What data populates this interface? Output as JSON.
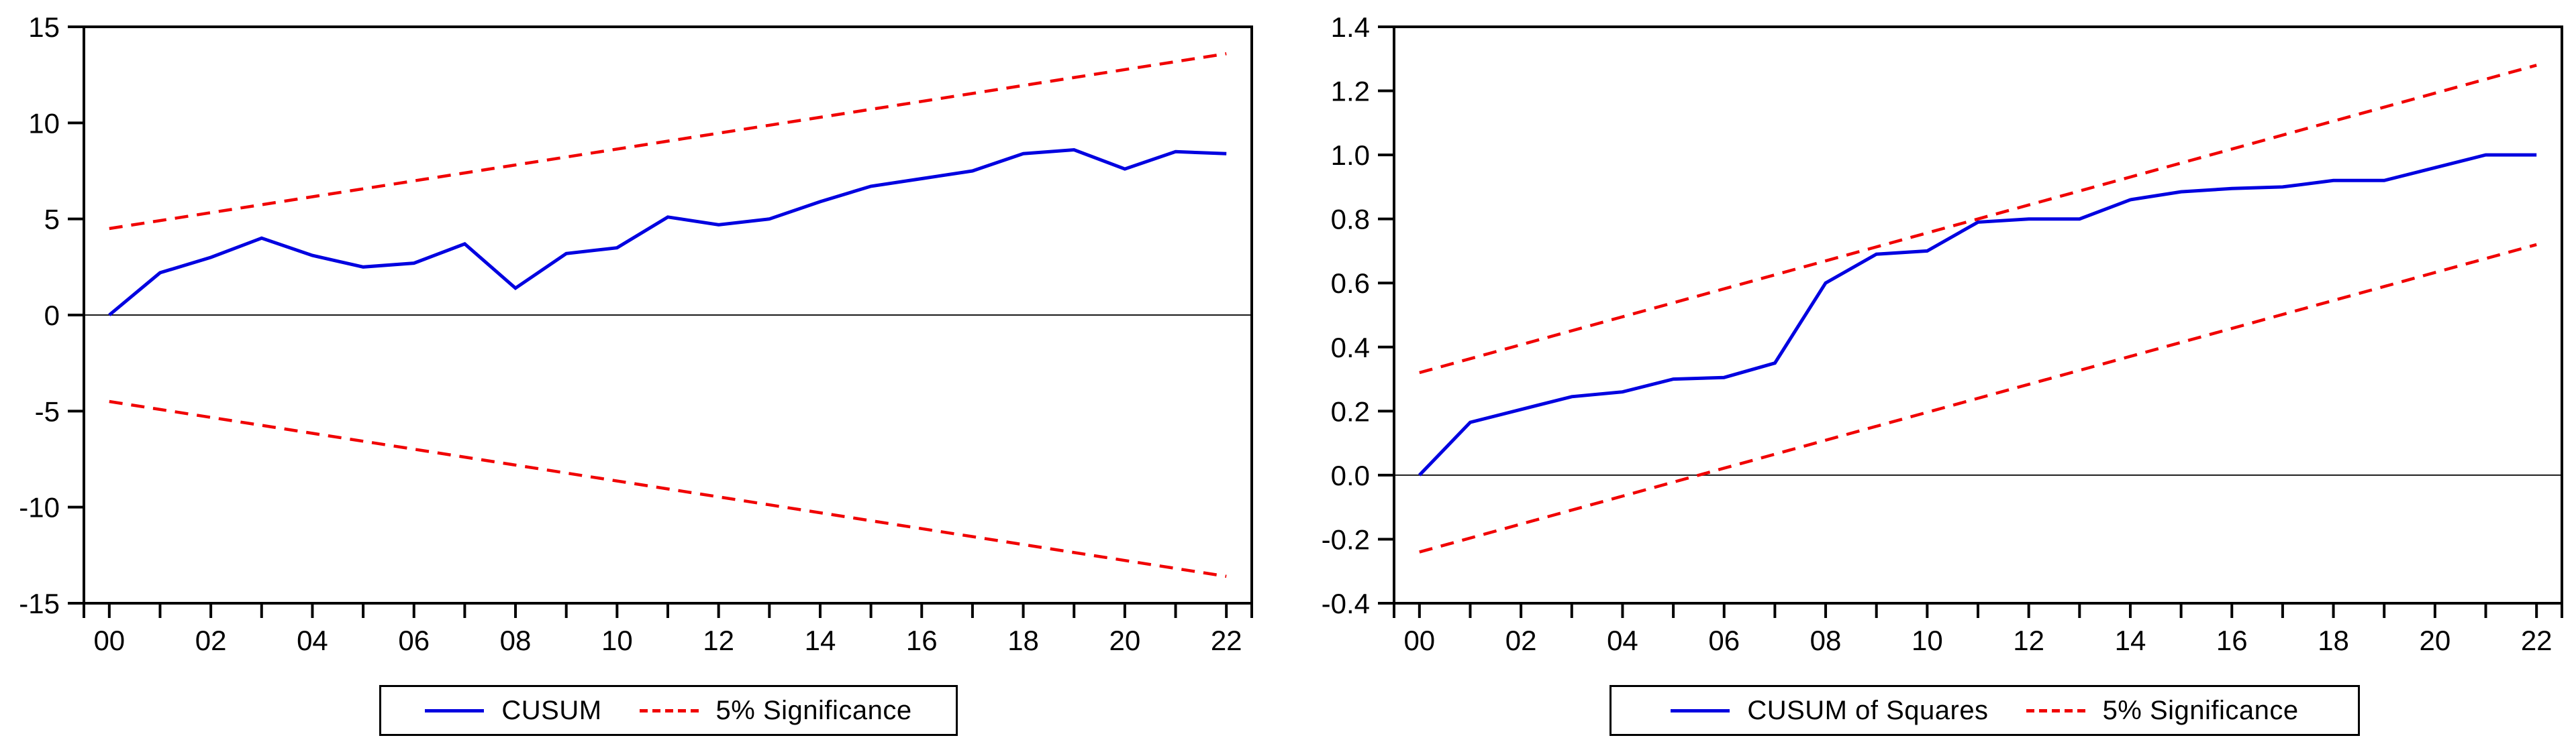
{
  "figure": {
    "background": "#ffffff"
  },
  "colors": {
    "series_blue": "#0000e0",
    "significance_red": "#f00000",
    "axis_black": "#000000",
    "zero_line": "#1a1a1a"
  },
  "chart_data": [
    {
      "id": "cusum",
      "type": "line",
      "title": "",
      "xlabel": "",
      "ylabel": "",
      "xlim": [
        -0.5,
        22.5
      ],
      "ylim": [
        -15,
        15
      ],
      "grid": false,
      "zero_line": true,
      "legend_position": "bottom-center",
      "y_ticks": [
        {
          "label": "15",
          "value": 15
        },
        {
          "label": "10",
          "value": 10
        },
        {
          "label": "5",
          "value": 5
        },
        {
          "label": "0",
          "value": 0
        },
        {
          "label": "-5",
          "value": -5
        },
        {
          "label": "-10",
          "value": -10
        },
        {
          "label": "-15",
          "value": -15
        }
      ],
      "x_ticks": [
        {
          "label": "00",
          "value": 0
        },
        {
          "label": "02",
          "value": 2
        },
        {
          "label": "04",
          "value": 4
        },
        {
          "label": "06",
          "value": 6
        },
        {
          "label": "08",
          "value": 8
        },
        {
          "label": "10",
          "value": 10
        },
        {
          "label": "12",
          "value": 12
        },
        {
          "label": "14",
          "value": 14
        },
        {
          "label": "16",
          "value": 16
        },
        {
          "label": "18",
          "value": 18
        },
        {
          "label": "20",
          "value": 20
        },
        {
          "label": "22",
          "value": 22
        }
      ],
      "x_minor_ticks": [
        1,
        3,
        5,
        7,
        9,
        11,
        13,
        15,
        17,
        19,
        21
      ],
      "series": [
        {
          "id": "cusum-line",
          "name": "CUSUM",
          "style": "solid",
          "color": "series_blue",
          "x": [
            0,
            1,
            2,
            3,
            4,
            5,
            6,
            7,
            8,
            9,
            10,
            11,
            12,
            13,
            14,
            15,
            16,
            17,
            18,
            19,
            20,
            21,
            22
          ],
          "values": [
            0.0,
            2.2,
            3.0,
            4.0,
            3.1,
            2.5,
            2.7,
            3.7,
            1.4,
            3.2,
            3.5,
            5.1,
            4.7,
            5.0,
            5.9,
            6.7,
            7.1,
            7.5,
            8.4,
            8.6,
            7.6,
            8.5,
            8.4
          ]
        },
        {
          "id": "sig-upper",
          "name": "5% Significance",
          "style": "dashed",
          "color": "significance_red",
          "x": [
            0,
            22
          ],
          "values": [
            4.5,
            13.6
          ]
        },
        {
          "id": "sig-lower",
          "name": "5% Significance",
          "style": "dashed",
          "color": "significance_red",
          "x": [
            0,
            22
          ],
          "values": [
            -4.5,
            -13.6
          ]
        }
      ],
      "legend": [
        {
          "label": "CUSUM",
          "style": "solid"
        },
        {
          "label": "5% Significance",
          "style": "dashed"
        }
      ]
    },
    {
      "id": "cusumsq",
      "type": "line",
      "title": "",
      "xlabel": "",
      "ylabel": "",
      "xlim": [
        -0.5,
        22.5
      ],
      "ylim": [
        -0.4,
        1.4
      ],
      "grid": false,
      "zero_line": true,
      "legend_position": "bottom-center",
      "y_ticks": [
        {
          "label": "1.4",
          "value": 1.4
        },
        {
          "label": "1.2",
          "value": 1.2
        },
        {
          "label": "1.0",
          "value": 1.0
        },
        {
          "label": "0.8",
          "value": 0.8
        },
        {
          "label": "0.6",
          "value": 0.6
        },
        {
          "label": "0.4",
          "value": 0.4
        },
        {
          "label": "0.2",
          "value": 0.2
        },
        {
          "label": "0.0",
          "value": 0.0
        },
        {
          "label": "-0.2",
          "value": -0.2
        },
        {
          "label": "-0.4",
          "value": -0.4
        }
      ],
      "x_ticks": [
        {
          "label": "00",
          "value": 0
        },
        {
          "label": "02",
          "value": 2
        },
        {
          "label": "04",
          "value": 4
        },
        {
          "label": "06",
          "value": 6
        },
        {
          "label": "08",
          "value": 8
        },
        {
          "label": "10",
          "value": 10
        },
        {
          "label": "12",
          "value": 12
        },
        {
          "label": "14",
          "value": 14
        },
        {
          "label": "16",
          "value": 16
        },
        {
          "label": "18",
          "value": 18
        },
        {
          "label": "20",
          "value": 20
        },
        {
          "label": "22",
          "value": 22
        }
      ],
      "x_minor_ticks": [
        1,
        3,
        5,
        7,
        9,
        11,
        13,
        15,
        17,
        19,
        21
      ],
      "series": [
        {
          "id": "cusumsq-line",
          "name": "CUSUM of Squares",
          "style": "solid",
          "color": "series_blue",
          "x": [
            0,
            1,
            2,
            3,
            4,
            5,
            6,
            7,
            8,
            9,
            10,
            11,
            12,
            13,
            14,
            15,
            16,
            17,
            18,
            19,
            20,
            21,
            22
          ],
          "values": [
            0.0,
            0.165,
            0.205,
            0.245,
            0.26,
            0.3,
            0.305,
            0.35,
            0.6,
            0.69,
            0.7,
            0.79,
            0.8,
            0.8,
            0.86,
            0.885,
            0.895,
            0.9,
            0.92,
            0.92,
            0.96,
            1.0,
            1.0
          ]
        },
        {
          "id": "sig-upper",
          "name": "5% Significance",
          "style": "dashed",
          "color": "significance_red",
          "x": [
            0,
            22
          ],
          "values": [
            0.32,
            1.28
          ]
        },
        {
          "id": "sig-lower",
          "name": "5% Significance",
          "style": "dashed",
          "color": "significance_red",
          "x": [
            0,
            22
          ],
          "values": [
            -0.24,
            0.72
          ]
        }
      ],
      "legend": [
        {
          "label": "CUSUM of Squares",
          "style": "solid"
        },
        {
          "label": "5% Significance",
          "style": "dashed"
        }
      ]
    }
  ]
}
